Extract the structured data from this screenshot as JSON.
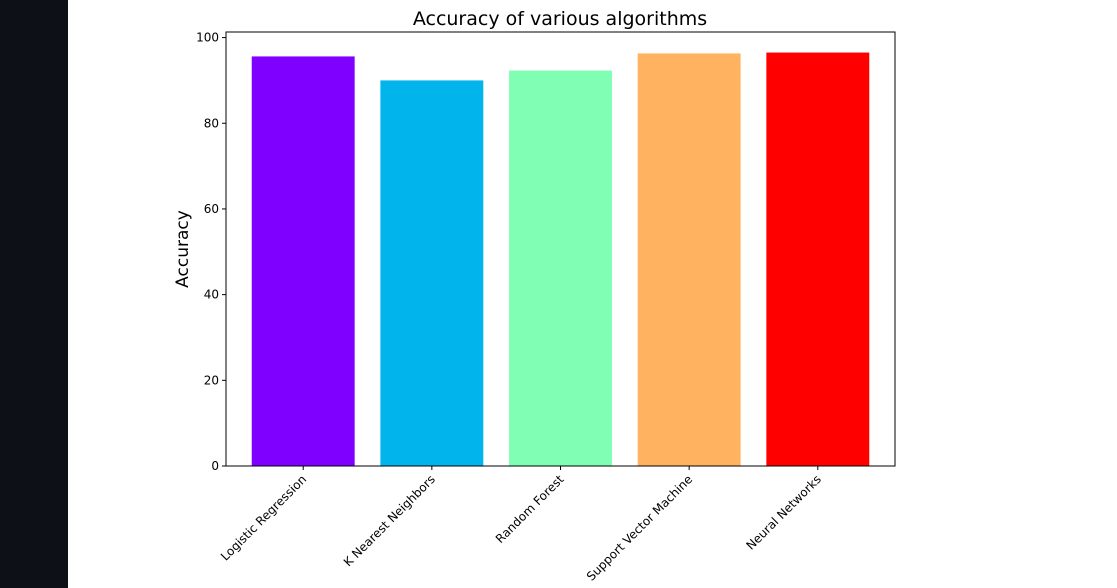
{
  "page": {
    "sidebar_color": "#0d1017",
    "background_color": "#ffffff"
  },
  "chart_data": {
    "type": "bar",
    "title": "Accuracy of various algorithms",
    "xlabel": "",
    "ylabel": "Accuracy",
    "categories": [
      "Logistic Regression",
      "K Nearest Neighbors",
      "Random Forest",
      "Support Vector Machine",
      "Neural Networks"
    ],
    "values": [
      95.6,
      90.0,
      92.3,
      96.3,
      96.5
    ],
    "colors": [
      "#8000ff",
      "#02b4ec",
      "#80ffb4",
      "#ffb360",
      "#ff0000"
    ],
    "ylim": [
      0,
      101.3
    ],
    "yticks": [
      0,
      20,
      40,
      60,
      80,
      100
    ],
    "grid": false,
    "legend": "none"
  }
}
